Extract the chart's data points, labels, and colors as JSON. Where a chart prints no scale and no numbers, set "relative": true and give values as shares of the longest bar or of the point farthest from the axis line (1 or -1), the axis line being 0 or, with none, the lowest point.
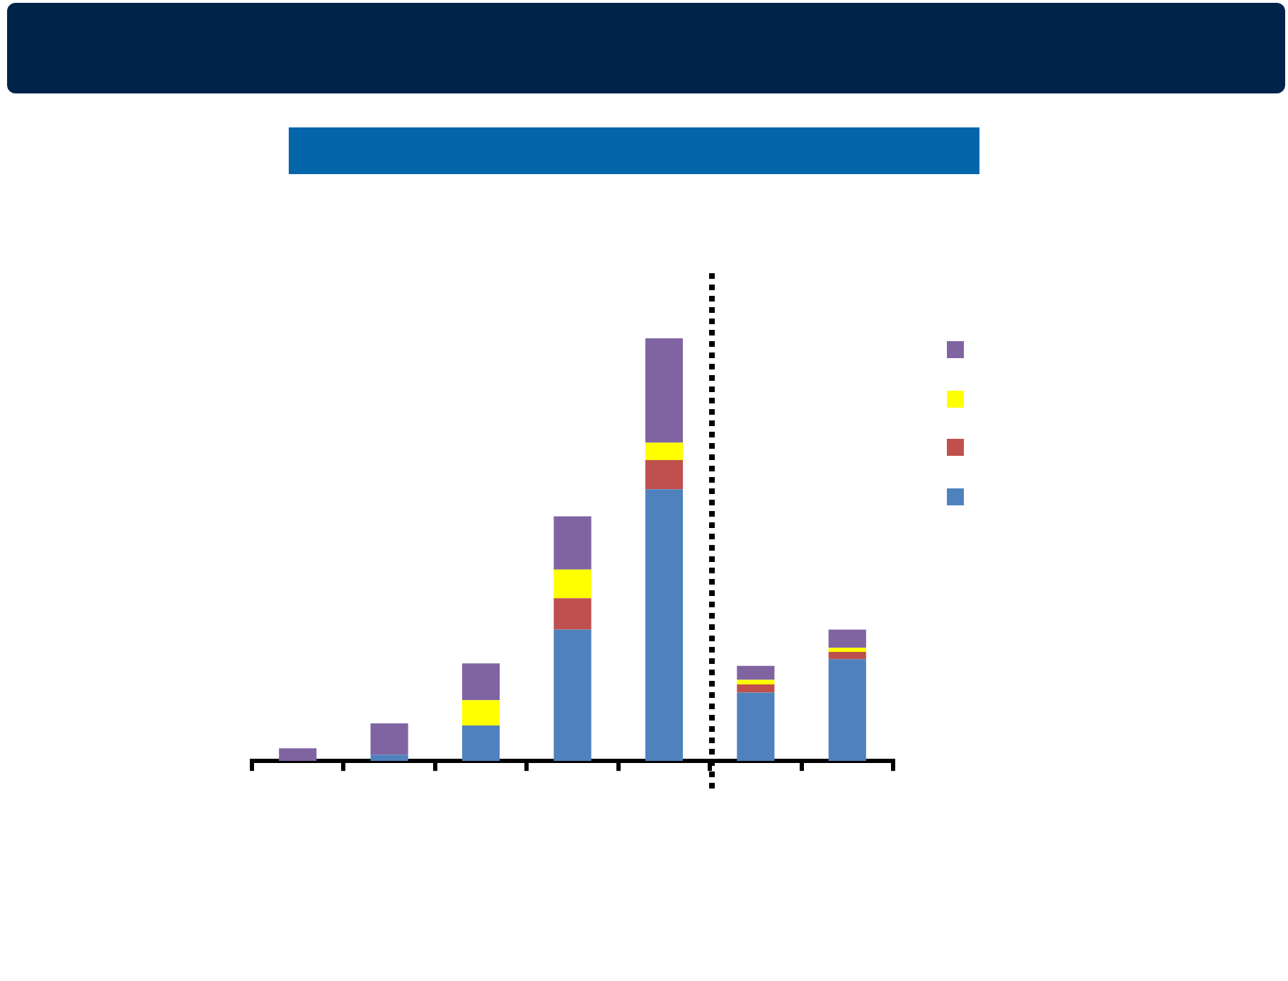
{
  "chart_data": {
    "type": "bar",
    "relative": true,
    "stacked": true,
    "categories": [
      null,
      null,
      null,
      null,
      null,
      null,
      null
    ],
    "series": [
      {
        "color": "#4f81bd",
        "values": [
          null,
          0.015,
          0.084,
          0.311,
          0.643,
          0.162,
          0.241
        ]
      },
      {
        "color": "#c0504d",
        "values": [
          null,
          null,
          null,
          0.074,
          0.069,
          0.019,
          0.017
        ]
      },
      {
        "color": "#ffff00",
        "values": [
          null,
          null,
          0.06,
          0.068,
          0.041,
          0.011,
          0.01
        ]
      },
      {
        "color": "#8064a2",
        "values": [
          0.03,
          0.074,
          0.087,
          0.126,
          0.247,
          0.033,
          0.043
        ]
      }
    ]
  }
}
